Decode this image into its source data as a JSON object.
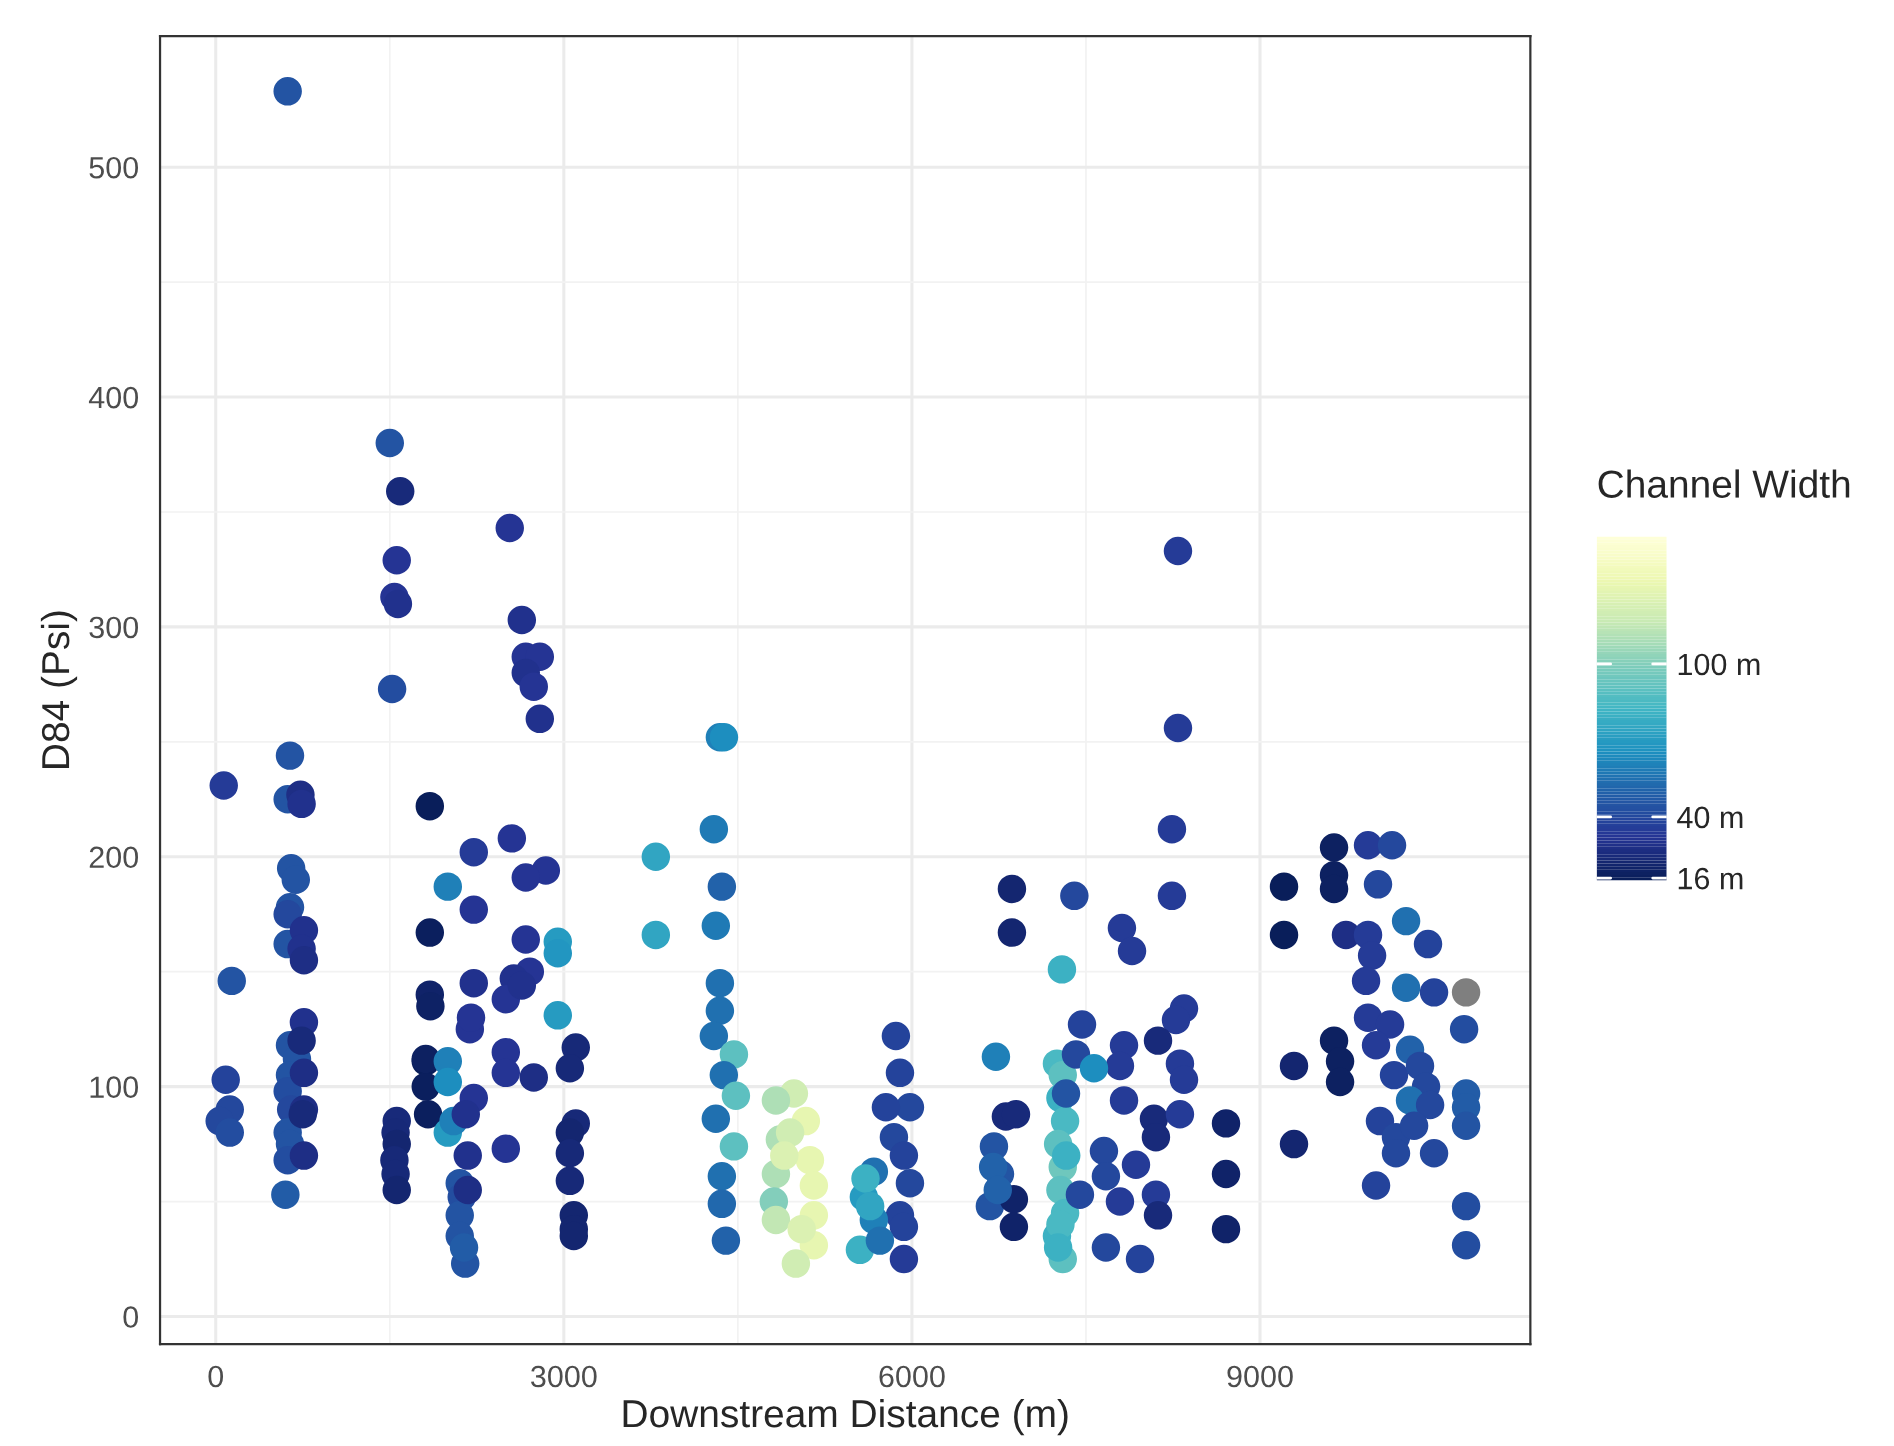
{
  "chart_data": {
    "type": "scatter",
    "xlabel": "Downstream Distance (m)",
    "ylabel": "D84 (Psi)",
    "clabel": "Channel Width",
    "xlim": [
      -480,
      11330
    ],
    "xticks": [
      0,
      3000,
      6000,
      9000
    ],
    "ylim": [
      -12,
      557
    ],
    "yticks": [
      0,
      100,
      200,
      300,
      400,
      500
    ],
    "clim": [
      15,
      150
    ],
    "cticks": [
      {
        "value": 16,
        "label": "16 m"
      },
      {
        "value": 40,
        "label": "40 m"
      },
      {
        "value": 100,
        "label": "100 m"
      }
    ],
    "grid": true,
    "marker": "circle",
    "x": [
      69,
      138,
      86,
      121,
      34,
      121,
      620,
      640,
      620,
      650,
      690,
      640,
      620,
      620,
      640,
      700,
      640,
      620,
      650,
      620,
      640,
      620,
      600,
      730,
      760,
      740,
      760,
      760,
      740,
      760,
      760,
      750,
      760,
      740,
      1500,
      1590,
      1560,
      1540,
      1570,
      1520,
      1560,
      1550,
      1560,
      1540,
      1550,
      1560,
      1845,
      1845,
      1845,
      1850,
      1810,
      1810,
      1830,
      1810,
      2000,
      2000,
      2000,
      2000,
      2050,
      2103,
      2120,
      2103,
      2103,
      2150,
      2140,
      2224,
      2224,
      2224,
      2190,
      2224,
      2155,
      2172,
      2200,
      2172,
      2534,
      2638,
      2672,
      2793,
      2672,
      2741,
      2793,
      2552,
      2845,
      2672,
      2672,
      2707,
      2569,
      2500,
      2638,
      2500,
      2500,
      2741,
      2500,
      2948,
      2948,
      2948,
      3103,
      3052,
      3103,
      3052,
      3052,
      3052,
      3086,
      3086,
      3086,
      3793,
      3793,
      4345,
      4380,
      4293,
      4362,
      4310,
      4345,
      4345,
      4293,
      4466,
      4379,
      4483,
      4310,
      4466,
      4362,
      4362,
      4397,
      4983,
      4828,
      5086,
      4862,
      5121,
      4828,
      5155,
      4810,
      5155,
      4828,
      5155,
      5000,
      4950,
      5050,
      4900,
      5862,
      5897,
      5983,
      5776,
      5845,
      5931,
      5983,
      5897,
      5931,
      5931,
      5672,
      5586,
      5672,
      5552,
      5724,
      5600,
      5640,
      6724,
      6862,
      6862,
      6707,
      6759,
      6672,
      6810,
      6897,
      6879,
      6879,
      6700,
      6740,
      7250,
      7300,
      7280,
      7320,
      7260,
      7300,
      7280,
      7320,
      7250,
      7300,
      7330,
      7280,
      7260,
      8293,
      8293,
      8241,
      8241,
      7400,
      7810,
      7897,
      7293,
      8345,
      8276,
      7466,
      8121,
      7828,
      8310,
      8345,
      7793,
      7414,
      7569,
      7328,
      7828,
      8086,
      8310,
      8103,
      7655,
      7931,
      7672,
      8103,
      7448,
      7793,
      8121,
      7672,
      7966,
      8707,
      8707,
      8707,
      9207,
      9207,
      9293,
      9293,
      9638,
      9638,
      9638,
      9931,
      10138,
      10017,
      9741,
      9931,
      9966,
      9914,
      10259,
      10448,
      10259,
      10500,
      10776,
      10759,
      9638,
      9690,
      9690,
      9931,
      10121,
      10000,
      10155,
      10293,
      10379,
      10431,
      10293,
      10466,
      10776,
      10776,
      10776,
      10034,
      10172,
      10328,
      10500,
      10172,
      10000,
      10776,
      10776
    ],
    "values": [
      231,
      146,
      103,
      90,
      85,
      80,
      533,
      244,
      225,
      195,
      190,
      178,
      175,
      162,
      118,
      112,
      105,
      98,
      90,
      80,
      75,
      68,
      53,
      227,
      168,
      160,
      155,
      128,
      120,
      106,
      90,
      88,
      70,
      223,
      380,
      359,
      329,
      313,
      310,
      273,
      85,
      80,
      75,
      68,
      62,
      55,
      222,
      167,
      140,
      135,
      111,
      100,
      88,
      112,
      187,
      111,
      102,
      80,
      85,
      58,
      52,
      44,
      35,
      23,
      30,
      202,
      177,
      145,
      125,
      95,
      88,
      55,
      130,
      70,
      343,
      303,
      287,
      287,
      280,
      274,
      260,
      208,
      194,
      191,
      164,
      150,
      147,
      138,
      144,
      115,
      106,
      104,
      73,
      163,
      131,
      158,
      117,
      108,
      84,
      80,
      71,
      59,
      44,
      38,
      35,
      200,
      166,
      252,
      252,
      212,
      187,
      170,
      145,
      133,
      122,
      114,
      105,
      96,
      86,
      74,
      61,
      49,
      33,
      97,
      94,
      85,
      77,
      68,
      62,
      57,
      50,
      44,
      42,
      31,
      23,
      80,
      38,
      70,
      122,
      106,
      91,
      91,
      78,
      70,
      58,
      44,
      39,
      25,
      63,
      52,
      42,
      29,
      33,
      60,
      48,
      113,
      186,
      167,
      74,
      62,
      48,
      87,
      88,
      51,
      39,
      65,
      55,
      110,
      105,
      95,
      85,
      75,
      65,
      55,
      45,
      35,
      25,
      70,
      40,
      30,
      333,
      256,
      212,
      183,
      183,
      169,
      159,
      151,
      134,
      129,
      127,
      120,
      118,
      110,
      103,
      109,
      114,
      108,
      97,
      94,
      86,
      88,
      78,
      72,
      66,
      61,
      53,
      53,
      50,
      44,
      30,
      25,
      84,
      62,
      38,
      187,
      166,
      109,
      75,
      204,
      192,
      186,
      205,
      205,
      188,
      166,
      166,
      157,
      146,
      172,
      162,
      143,
      141,
      141,
      125,
      120,
      111,
      102,
      130,
      127,
      118,
      105,
      116,
      109,
      100,
      94,
      92,
      97,
      91,
      83,
      85,
      78,
      83,
      71,
      71,
      57,
      48,
      31
    ],
    "cvalues": [
      35,
      45,
      38,
      40,
      40,
      42,
      45,
      45,
      45,
      45,
      45,
      45,
      40,
      45,
      45,
      45,
      45,
      42,
      40,
      45,
      45,
      42,
      48,
      28,
      30,
      30,
      28,
      30,
      25,
      28,
      28,
      25,
      28,
      30,
      45,
      25,
      32,
      32,
      30,
      42,
      25,
      24,
      22,
      24,
      24,
      22,
      16,
      17,
      20,
      19,
      16,
      17,
      17,
      18,
      60,
      60,
      65,
      70,
      60,
      45,
      42,
      45,
      45,
      45,
      48,
      35,
      32,
      30,
      32,
      32,
      30,
      28,
      32,
      30,
      32,
      30,
      32,
      32,
      30,
      32,
      30,
      32,
      32,
      32,
      32,
      32,
      30,
      32,
      30,
      32,
      32,
      28,
      32,
      70,
      70,
      68,
      24,
      24,
      24,
      22,
      24,
      24,
      22,
      22,
      22,
      75,
      75,
      60,
      65,
      58,
      50,
      58,
      55,
      55,
      55,
      90,
      55,
      90,
      55,
      90,
      55,
      52,
      50,
      120,
      110,
      130,
      110,
      130,
      110,
      130,
      100,
      130,
      115,
      130,
      120,
      120,
      125,
      125,
      38,
      38,
      40,
      38,
      40,
      38,
      40,
      38,
      38,
      35,
      55,
      70,
      60,
      80,
      55,
      80,
      75,
      60,
      22,
      22,
      45,
      45,
      45,
      25,
      25,
      20,
      20,
      50,
      50,
      85,
      90,
      80,
      85,
      90,
      95,
      90,
      85,
      80,
      90,
      80,
      85,
      80,
      35,
      35,
      35,
      35,
      40,
      35,
      35,
      80,
      35,
      35,
      38,
      25,
      35,
      35,
      35,
      35,
      40,
      65,
      45,
      35,
      25,
      35,
      25,
      40,
      35,
      40,
      35,
      40,
      35,
      25,
      40,
      38,
      20,
      20,
      20,
      16,
      16,
      22,
      22,
      18,
      18,
      18,
      35,
      40,
      40,
      28,
      35,
      35,
      35,
      55,
      38,
      55,
      38,
      null,
      42,
      18,
      18,
      18,
      35,
      35,
      35,
      38,
      50,
      40,
      40,
      55,
      40,
      48,
      48,
      45,
      38,
      40,
      40,
      40,
      40,
      38,
      42,
      42
    ]
  }
}
